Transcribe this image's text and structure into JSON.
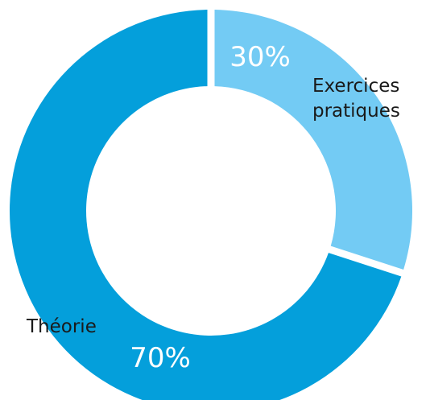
{
  "chart_data": {
    "type": "pie",
    "donut": true,
    "categories": [
      "Exercices pratiques",
      "Théorie"
    ],
    "values": [
      30,
      70
    ],
    "unit": "%",
    "value_labels": [
      "30%",
      "70%"
    ],
    "category_labels": [
      [
        "Exercices",
        "pratiques"
      ],
      [
        "Théorie"
      ]
    ],
    "colors": [
      "#73cbf4",
      "#049fdb"
    ],
    "separator_color": "#ffffff",
    "start_angle": "top",
    "direction": "clockwise",
    "legend": "none",
    "title": ""
  }
}
